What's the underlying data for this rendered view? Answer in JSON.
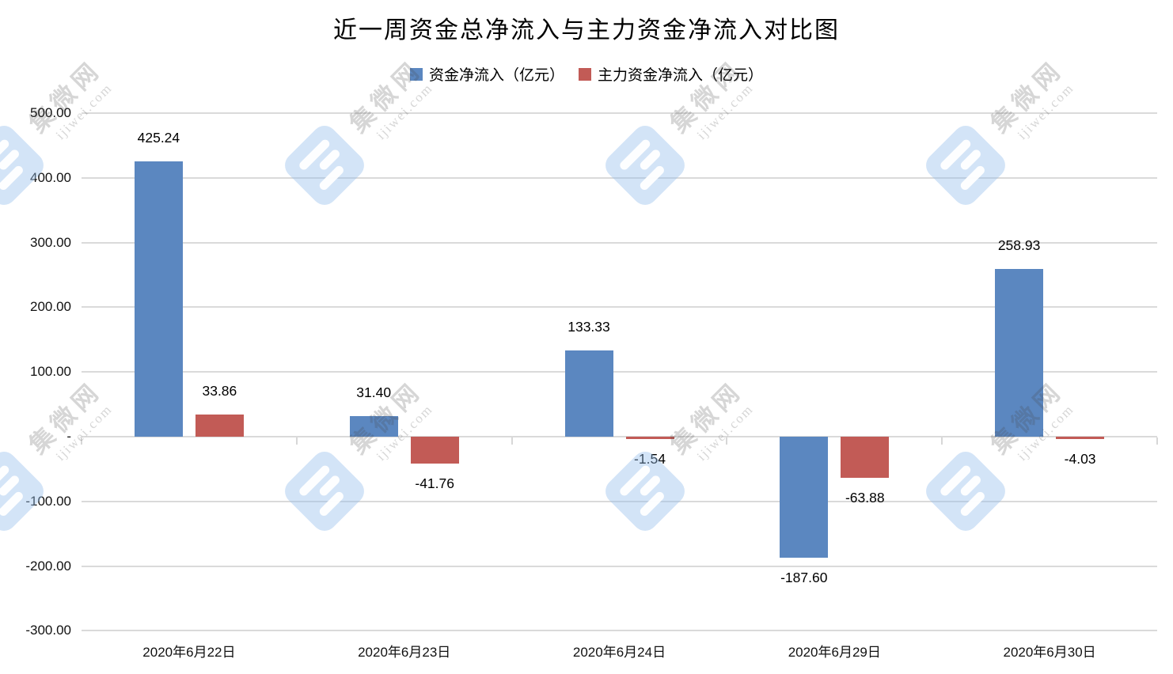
{
  "title": "近一周资金总净流入与主力资金净流入对比图",
  "legend": {
    "items": [
      {
        "label": "资金净流入（亿元）",
        "color": "#5B87C0"
      },
      {
        "label": "主力资金净流入（亿元）",
        "color": "#C25B56"
      }
    ]
  },
  "watermark": {
    "name": "集微网",
    "domain": "ijiwei.com"
  },
  "colors": {
    "background": "#FFFFFF",
    "gridline": "#DADADA",
    "bar_blue": "#5B87C0",
    "bar_red": "#C25B56",
    "watermark_logo_blue": "#D9E7F8",
    "watermark_text_gray": "#D3D3D3"
  },
  "chart_data": {
    "type": "bar",
    "title": "近一周资金总净流入与主力资金净流入对比图",
    "categories": [
      "2020年6月22日",
      "2020年6月23日",
      "2020年6月24日",
      "2020年6月29日",
      "2020年6月30日"
    ],
    "series": [
      {
        "name": "资金净流入（亿元）",
        "color": "#5B87C0",
        "values": [
          425.24,
          31.4,
          133.33,
          -187.6,
          258.93
        ],
        "labels": [
          "425.24",
          "31.40",
          "133.33",
          "-187.60",
          "258.93"
        ]
      },
      {
        "name": "主力资金净流入（亿元）",
        "color": "#C25B56",
        "values": [
          33.86,
          -41.76,
          -1.54,
          -63.88,
          -4.03
        ],
        "labels": [
          "33.86",
          "-41.76",
          "-1.54",
          "-63.88",
          "-4.03"
        ]
      }
    ],
    "xlabel": "",
    "ylabel": "",
    "ylim": [
      -300,
      500
    ],
    "ytick_step": 100,
    "yticks": [
      {
        "value": 500,
        "label": "500.00"
      },
      {
        "value": 400,
        "label": "400.00"
      },
      {
        "value": 300,
        "label": "300.00"
      },
      {
        "value": 200,
        "label": "200.00"
      },
      {
        "value": 100,
        "label": "100.00"
      },
      {
        "value": 0,
        "label": "-"
      },
      {
        "value": -100,
        "label": "-100.00"
      },
      {
        "value": -200,
        "label": "-200.00"
      },
      {
        "value": -300,
        "label": "-300.00"
      }
    ],
    "grid": "horizontal",
    "legend_position": "top",
    "data_labels": true
  }
}
